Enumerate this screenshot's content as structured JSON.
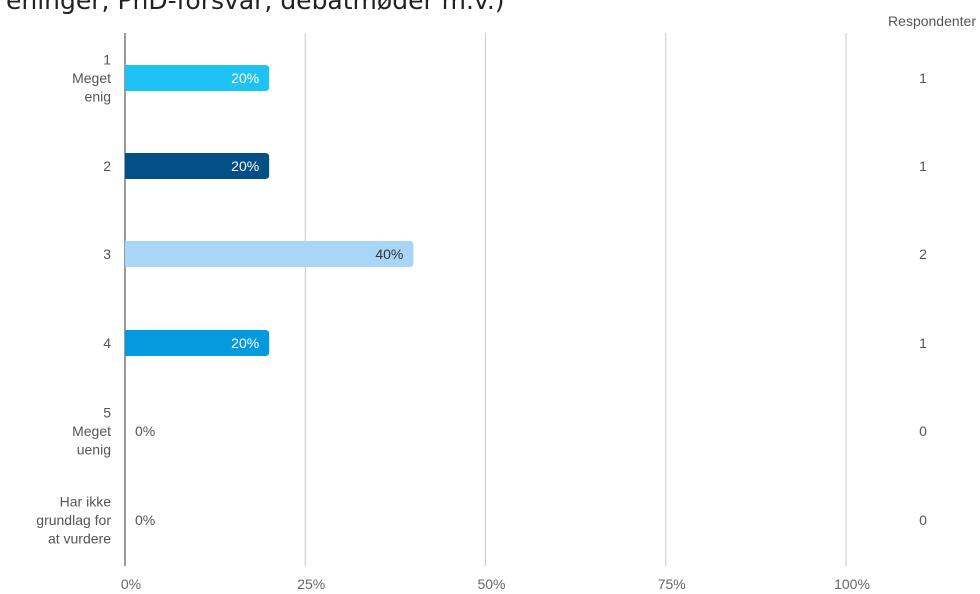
{
  "page": {
    "title": "eninger, PhD-forsvar, debatmøder m.v.)",
    "respondents_header": "Respondenter"
  },
  "chart_data": {
    "type": "bar",
    "orientation": "horizontal",
    "categories": [
      [
        "1",
        "Meget",
        "enig"
      ],
      [
        "2"
      ],
      [
        "3"
      ],
      [
        "4"
      ],
      [
        "5",
        "Meget",
        "uenig"
      ],
      [
        "Har ikke",
        "grundlag for",
        "at vurdere"
      ]
    ],
    "values": [
      20,
      20,
      40,
      20,
      0,
      0
    ],
    "value_labels": [
      "20%",
      "20%",
      "40%",
      "20%",
      "0%",
      "0%"
    ],
    "respondents": [
      "1",
      "1",
      "2",
      "1",
      "0",
      "0"
    ],
    "colors": [
      "#1ec2f3",
      "#054f87",
      "#a9d6f6",
      "#0599de",
      "#cccccc",
      "#cccccc"
    ],
    "label_colors": [
      "#ffffff",
      "#ffffff",
      "#333333",
      "#ffffff",
      "#333333",
      "#333333"
    ],
    "xticks": [
      "0%",
      "25%",
      "50%",
      "75%",
      "100%"
    ],
    "xlim": [
      0,
      100
    ],
    "grid": true
  }
}
